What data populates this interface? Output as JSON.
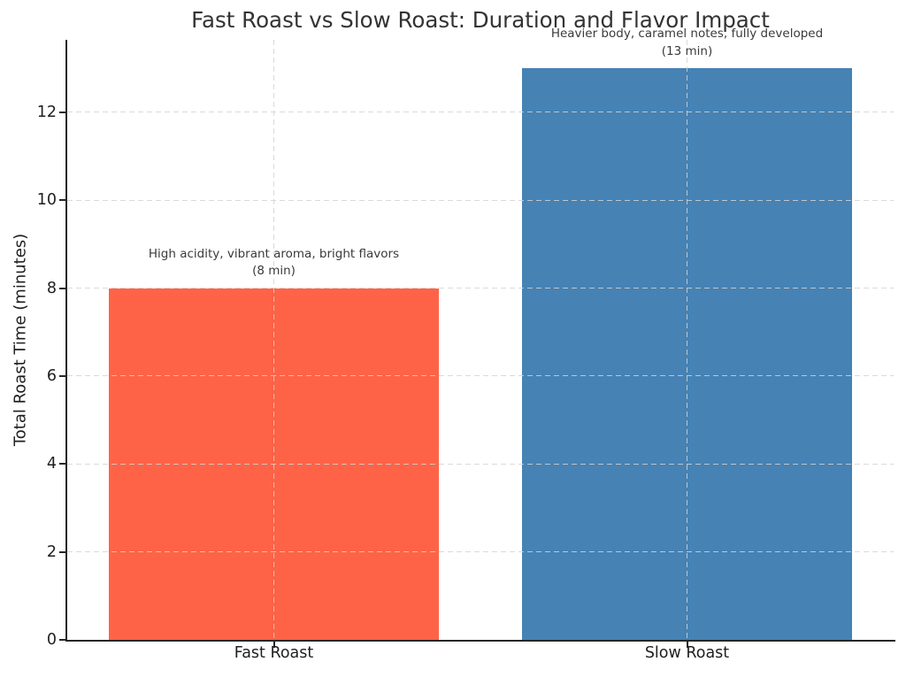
{
  "chart_data": {
    "type": "bar",
    "title": "Fast Roast vs Slow Roast: Duration and Flavor Impact",
    "xlabel": "",
    "ylabel": "Total Roast Time (minutes)",
    "categories": [
      "Fast Roast",
      "Slow Roast"
    ],
    "values": [
      8,
      13
    ],
    "bar_colors": [
      "#FF6347",
      "#4682B4"
    ],
    "annotations": [
      {
        "line1": "High acidity, vibrant aroma, bright flavors",
        "line2": "(8 min)"
      },
      {
        "line1": "Heavier body, caramel notes, fully developed",
        "line2": "(13 min)"
      }
    ],
    "yticks": [
      0,
      2,
      4,
      6,
      8,
      10,
      12
    ],
    "ylim": [
      0,
      13.65
    ],
    "bar_width": 0.8,
    "grid": "dashed",
    "grid_color": "#d3d3d3",
    "axis_color": "#262626",
    "title_color": "#333333",
    "legend": "none"
  }
}
